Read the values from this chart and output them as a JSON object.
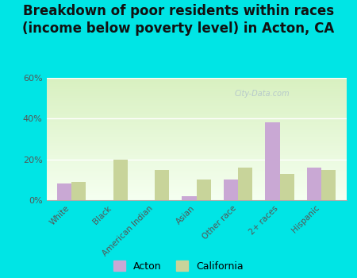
{
  "title": "Breakdown of poor residents within races\n(income below poverty level) in Acton, CA",
  "categories": [
    "White",
    "Black",
    "American Indian",
    "Asian",
    "Other race",
    "2+ races",
    "Hispanic"
  ],
  "acton_values": [
    8,
    0,
    0,
    2,
    10,
    38,
    16
  ],
  "california_values": [
    9,
    20,
    15,
    10,
    16,
    13,
    15
  ],
  "acton_color": "#c9a8d4",
  "california_color": "#c8d49a",
  "outer_bg": "#00e5e5",
  "ylim": [
    0,
    60
  ],
  "yticks": [
    0,
    20,
    40,
    60
  ],
  "ytick_labels": [
    "0%",
    "20%",
    "40%",
    "60%"
  ],
  "title_fontsize": 12,
  "bar_width": 0.35,
  "watermark": "City-Data.com",
  "legend_labels": [
    "Acton",
    "California"
  ]
}
